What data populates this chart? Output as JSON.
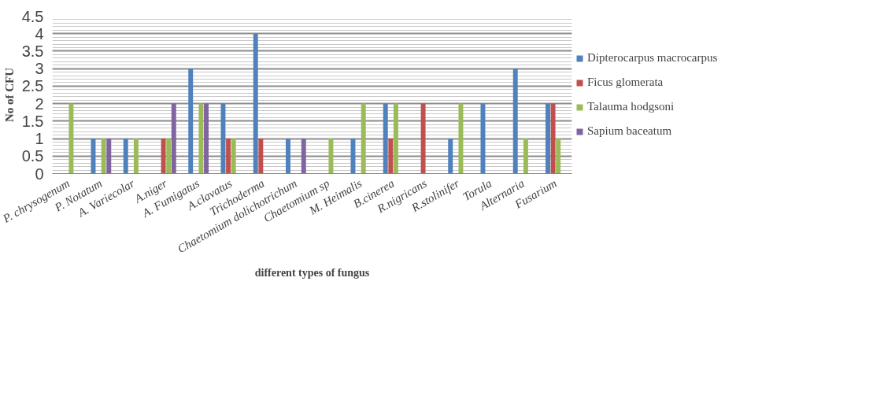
{
  "chart_data": {
    "type": "bar",
    "xlabel": "different types of fungus",
    "ylabel": "No of CFU",
    "categories": [
      "P. chrysogenum",
      "P. Notatum",
      "A. Variecolar",
      "A.niger",
      "A. Fumigatus",
      "A.clavatus",
      "Trichoderma",
      "Chaetomium dolichotrichum",
      "Chaetomium sp",
      "M. Heimalis",
      "B.cinerea",
      "R.nigricans",
      "R.stolinifer",
      "Torula",
      "Alternaria",
      "Fusarium"
    ],
    "series": [
      {
        "name": "Dipterocarpus macrocarpus",
        "color": "#4f81bd",
        "values": [
          0,
          1,
          1,
          0,
          3,
          2,
          4,
          1,
          0,
          1,
          2,
          0,
          1,
          2,
          3,
          2
        ]
      },
      {
        "name": "Ficus glomerata",
        "color": "#c0504d",
        "values": [
          0,
          0,
          0,
          1,
          0,
          1,
          1,
          0,
          0,
          0,
          1,
          2,
          0,
          0,
          0,
          2
        ]
      },
      {
        "name": "Talauma hodgsoni",
        "color": "#9bbb59",
        "values": [
          2,
          1,
          1,
          1,
          2,
          1,
          0,
          0,
          1,
          2,
          2,
          0,
          2,
          0,
          1,
          1
        ]
      },
      {
        "name": "Sapium baceatum",
        "color": "#8064a2",
        "values": [
          0,
          1,
          0,
          2,
          2,
          0,
          0,
          1,
          0,
          0,
          0,
          0,
          0,
          0,
          0,
          0
        ]
      }
    ],
    "ylim": [
      0,
      4.5
    ],
    "yticks": [
      0,
      0.5,
      1,
      1.5,
      2,
      2.5,
      3,
      3.5,
      4,
      4.5
    ],
    "grid": "y",
    "legend": "right"
  }
}
